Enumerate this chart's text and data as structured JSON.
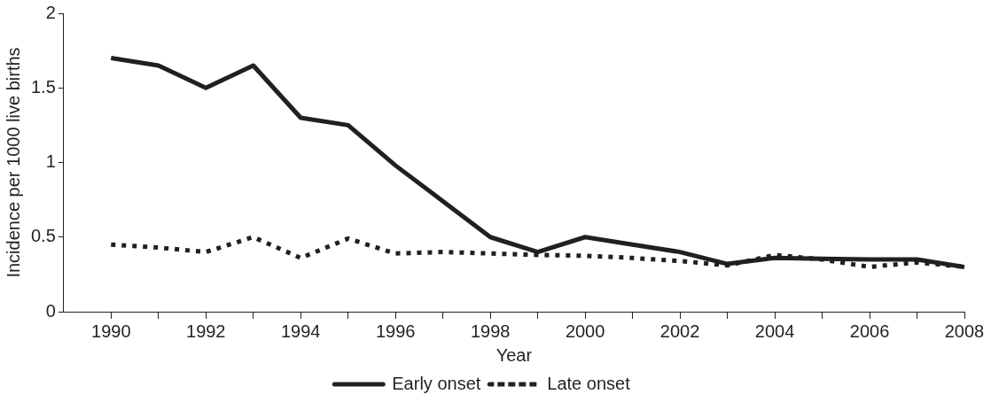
{
  "chart_data": {
    "type": "line",
    "xlabel": "Year",
    "ylabel": "Incidence per 1000 live births",
    "x": [
      1990,
      1991,
      1992,
      1993,
      1994,
      1995,
      1996,
      1997,
      1998,
      1999,
      2000,
      2001,
      2002,
      2003,
      2004,
      2005,
      2006,
      2007,
      2008
    ],
    "series": [
      {
        "name": "Early onset",
        "color": "#231f20",
        "line_style": "solid",
        "values": [
          1.7,
          1.65,
          1.5,
          1.65,
          1.3,
          1.25,
          0.98,
          0.74,
          0.5,
          0.4,
          0.5,
          0.45,
          0.4,
          0.32,
          0.36,
          0.355,
          0.35,
          0.35,
          0.3
        ]
      },
      {
        "name": "Late onset",
        "color": "#231f20",
        "line_style": "dotted",
        "values": [
          0.45,
          0.43,
          0.4,
          0.5,
          0.36,
          0.49,
          0.39,
          0.4,
          0.39,
          0.38,
          0.375,
          0.36,
          0.34,
          0.31,
          0.38,
          0.35,
          0.3,
          0.33,
          0.3
        ]
      }
    ],
    "xlim": [
      1989,
      2008
    ],
    "xticks": [
      1990,
      {
        "value": 1991,
        "label": null
      },
      1992,
      {
        "value": 1993,
        "label": null
      },
      1994,
      {
        "value": 1995,
        "label": null
      },
      1996,
      {
        "value": 1997,
        "label": null
      },
      1998,
      {
        "value": 1999,
        "label": null
      },
      2000,
      {
        "value": 2001,
        "label": null
      },
      2002,
      {
        "value": 2003,
        "label": null
      },
      2004,
      {
        "value": 2005,
        "label": null
      },
      2006,
      {
        "value": 2007,
        "label": null
      },
      2008
    ],
    "ylim": [
      0,
      2
    ],
    "yticks": [
      0,
      0.5,
      1,
      1.5,
      2
    ],
    "grid": false,
    "legend": "bottom",
    "marker": "none"
  }
}
